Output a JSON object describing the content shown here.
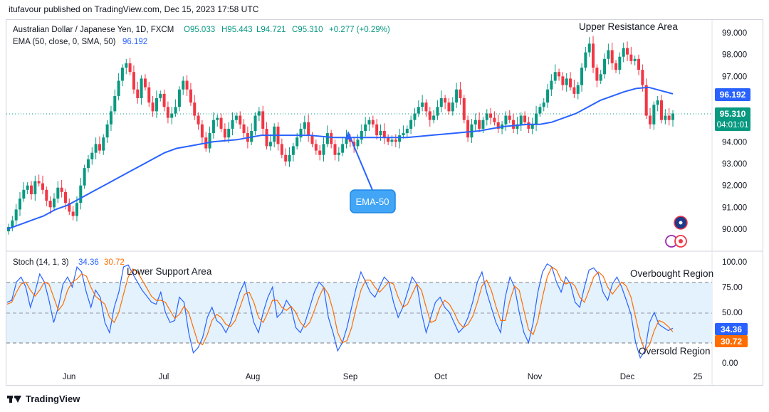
{
  "header": "itufavour published on TradingView.com, Dec 15, 2023 17:58 UTC",
  "legend": {
    "symbol": "Australian Dollar / Japanese Yen, 1D, FXCM",
    "open": "O95.033",
    "high": "H95.443",
    "low": "L94.721",
    "close": "C95.310",
    "change": "+0.277 (+0.29%)",
    "ema_label": "EMA (50, close, 0, SMA, 50)",
    "ema_value": "96.192",
    "stoch_label": "Stoch (14, 1, 3)",
    "stoch_k": "34.36",
    "stoch_d": "30.72"
  },
  "annotations": {
    "upper": "Upper Resistance Area",
    "lower": "Lower Support Area",
    "overbought": "Overbought Region",
    "oversold": "Oversold Region",
    "ema_callout": "EMA-50"
  },
  "price_axis": [
    "99.000",
    "98.000",
    "97.000",
    "96.000",
    "95.000",
    "94.000",
    "93.000",
    "92.000",
    "91.000",
    "90.000"
  ],
  "stoch_axis": [
    "100.00",
    "75.00",
    "50.00",
    "25.00",
    "0.00"
  ],
  "time_axis": [
    "Jun",
    "Jul",
    "Aug",
    "Sep",
    "Oct",
    "Nov",
    "Dec",
    "25"
  ],
  "badges": {
    "ema": "96.192",
    "price": "95.310",
    "countdown": "04:01:01",
    "k": "34.36",
    "d": "30.72"
  },
  "colors": {
    "up": "#089981",
    "down": "#f23645",
    "ema": "#2962ff",
    "k": "#2962ff",
    "d": "#ff6d00",
    "band": "#e3f2fd"
  },
  "footer": "TradingView",
  "chart_data": [
    {
      "type": "candlestick",
      "title": "Australian Dollar / Japanese Yen, 1D, FXCM",
      "ylim": [
        89.6,
        99.4
      ],
      "x_range": [
        "May 2023",
        "Dec 2023"
      ],
      "price": {
        "close": [
          90.1,
          90.4,
          90.9,
          91.4,
          91.8,
          92.0,
          91.6,
          92.2,
          92.1,
          91.8,
          91.3,
          91.0,
          91.4,
          91.9,
          91.7,
          91.2,
          90.8,
          90.6,
          91.2,
          92.0,
          92.8,
          93.2,
          93.5,
          93.9,
          93.6,
          94.2,
          94.8,
          95.4,
          96.1,
          96.8,
          97.4,
          97.6,
          97.2,
          96.4,
          96.0,
          96.9,
          96.5,
          95.8,
          95.4,
          96.0,
          96.2,
          95.6,
          95.1,
          95.3,
          95.6,
          96.4,
          96.8,
          96.4,
          95.8,
          95.2,
          94.8,
          94.2,
          93.7,
          94.4,
          95.0,
          95.1,
          94.6,
          94.2,
          94.6,
          95.0,
          95.2,
          94.8,
          94.4,
          94.0,
          94.5,
          95.2,
          95.4,
          94.6,
          93.8,
          94.0,
          94.7,
          93.9,
          93.4,
          93.1,
          93.4,
          93.8,
          94.2,
          94.6,
          94.9,
          94.3,
          93.9,
          93.6,
          93.4,
          93.9,
          94.4,
          93.9,
          93.4,
          93.5,
          93.9,
          94.2,
          94.0,
          93.8,
          94.1,
          94.5,
          94.8,
          95.0,
          94.8,
          94.3,
          94.5,
          94.2,
          94.0,
          94.1,
          94.0,
          94.3,
          94.4,
          94.6,
          95.0,
          95.3,
          95.6,
          95.8,
          95.4,
          95.0,
          95.2,
          95.6,
          96.0,
          95.8,
          95.4,
          95.8,
          96.4,
          96.0,
          95.0,
          94.2,
          94.8,
          95.0,
          94.6,
          95.0,
          95.3,
          95.1,
          94.9,
          94.6,
          94.8,
          95.2,
          95.0,
          94.6,
          94.8,
          95.2,
          94.9,
          94.6,
          94.8,
          95.3,
          95.6,
          95.8,
          96.4,
          96.8,
          97.2,
          97.0,
          96.6,
          96.9,
          96.5,
          96.2,
          96.6,
          97.4,
          98.1,
          98.5,
          97.4,
          96.8,
          97.1,
          97.8,
          98.2,
          97.6,
          97.3,
          97.9,
          98.3,
          98.0,
          97.7,
          97.8,
          97.3,
          96.6,
          95.2,
          94.8,
          95.7,
          95.9,
          95.0,
          95.2,
          95.0,
          95.3
        ],
        "ema50": [
          90.0,
          90.2,
          90.4,
          90.6,
          90.9,
          91.1,
          91.4,
          91.7,
          92.0,
          92.3,
          92.6,
          92.9,
          93.2,
          93.5,
          93.7,
          93.8,
          93.9,
          94.0,
          94.05,
          94.1,
          94.2,
          94.3,
          94.3,
          94.3,
          94.3,
          94.3,
          94.25,
          94.2,
          94.2,
          94.2,
          94.2,
          94.2,
          94.2,
          94.2,
          94.25,
          94.3,
          94.35,
          94.4,
          94.45,
          94.5,
          94.6,
          94.7,
          94.75,
          94.8,
          94.8,
          94.9,
          95.1,
          95.3,
          95.6,
          95.9,
          96.1,
          96.3,
          96.45,
          96.5,
          96.35,
          96.2
        ]
      }
    },
    {
      "type": "line",
      "title": "Stoch (14, 1, 3)",
      "ylim": [
        0,
        100
      ],
      "series": [
        {
          "name": "%K",
          "values": [
            60,
            62,
            80,
            85,
            75,
            55,
            70,
            88,
            80,
            62,
            40,
            55,
            78,
            85,
            75,
            95,
            90,
            70,
            55,
            72,
            65,
            40,
            30,
            55,
            70,
            95,
            97,
            88,
            80,
            72,
            66,
            60,
            58,
            70,
            50,
            40,
            42,
            65,
            60,
            30,
            10,
            15,
            25,
            45,
            55,
            42,
            38,
            30,
            40,
            55,
            70,
            80,
            60,
            40,
            30,
            50,
            65,
            75,
            45,
            50,
            62,
            55,
            35,
            30,
            40,
            55,
            70,
            80,
            75,
            45,
            30,
            12,
            20,
            35,
            55,
            75,
            90,
            80,
            70,
            65,
            75,
            85,
            80,
            60,
            45,
            55,
            70,
            85,
            78,
            50,
            30,
            45,
            60,
            65,
            55,
            50,
            40,
            30,
            35,
            45,
            60,
            80,
            90,
            70,
            55,
            40,
            30,
            65,
            85,
            75,
            50,
            30,
            20,
            40,
            70,
            90,
            98,
            95,
            80,
            70,
            85,
            78,
            60,
            55,
            75,
            92,
            94,
            88,
            70,
            62,
            78,
            85,
            75,
            62,
            48,
            20,
            5,
            12,
            40,
            50,
            38,
            35,
            32,
            34.36
          ]
        },
        {
          "name": "%D",
          "values": [
            58,
            60,
            70,
            78,
            80,
            72,
            66,
            72,
            80,
            78,
            65,
            52,
            58,
            72,
            80,
            83,
            88,
            86,
            75,
            66,
            62,
            58,
            45,
            40,
            50,
            68,
            85,
            93,
            90,
            82,
            74,
            66,
            62,
            62,
            60,
            52,
            44,
            48,
            56,
            50,
            35,
            20,
            18,
            28,
            42,
            48,
            45,
            38,
            36,
            42,
            55,
            68,
            70,
            60,
            45,
            40,
            50,
            62,
            62,
            55,
            52,
            56,
            50,
            40,
            35,
            40,
            52,
            65,
            75,
            68,
            52,
            30,
            20,
            22,
            35,
            55,
            72,
            82,
            82,
            75,
            70,
            75,
            80,
            78,
            65,
            55,
            58,
            68,
            78,
            72,
            55,
            40,
            42,
            55,
            62,
            58,
            50,
            40,
            35,
            38,
            46,
            60,
            76,
            82,
            72,
            56,
            42,
            42,
            62,
            76,
            72,
            52,
            33,
            28,
            42,
            65,
            85,
            95,
            92,
            82,
            78,
            80,
            76,
            65,
            60,
            72,
            85,
            90,
            86,
            75,
            68,
            74,
            80,
            76,
            65,
            45,
            25,
            12,
            18,
            32,
            42,
            40,
            36,
            30.72
          ]
        }
      ]
    }
  ]
}
